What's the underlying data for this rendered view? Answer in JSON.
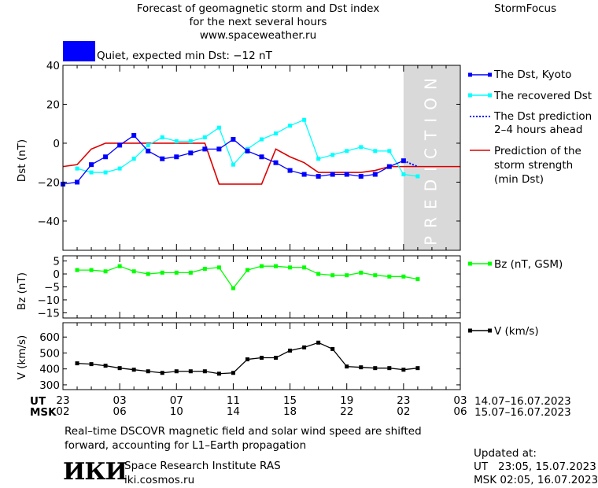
{
  "header": {
    "title_line1": "Forecast of geomagnetic storm and Dst index",
    "title_line2": "for the next several hours",
    "site": "www.spaceweather.ru",
    "brand": "StormFocus",
    "status_text": "Quiet, expected min Dst: −12 nT",
    "status_color": "#0000ff"
  },
  "legend": {
    "dst_kyoto": "The Dst, Kyoto",
    "dst_recovered": "The recovered Dst",
    "dst_prediction_1": "The Dst prediction",
    "dst_prediction_2": "2–4 hours ahead",
    "storm_strength_1": "Prediction of the",
    "storm_strength_2": "storm strength",
    "storm_strength_3": "(min Dst)",
    "bz": "Bz (nT, GSM)",
    "v": "V (km/s)"
  },
  "prediction_label": "PREDICTION",
  "axis": {
    "ut_label": "UT",
    "msk_label": "MSK",
    "ut_ticks": [
      "23",
      "03",
      "07",
      "11",
      "15",
      "19",
      "23",
      "03"
    ],
    "msk_ticks": [
      "02",
      "06",
      "10",
      "14",
      "18",
      "22",
      "02",
      "06"
    ],
    "ut_range": "14.07–16.07.2023",
    "msk_range": "15.07–16.07.2023"
  },
  "footer": {
    "note_line1": "Real–time DSCOVR magnetic field and solar wind speed are shifted",
    "note_line2": "forward, accounting for L1–Earth propagation",
    "institute_logo": "ИКИ",
    "institute_name": "Space Research Institute RAS",
    "institute_url": "iki.cosmos.ru",
    "updated_label": "Updated at:",
    "updated_ut": "UT   23:05, 15.07.2023",
    "updated_msk": "MSK 02:05, 16.07.2023"
  },
  "colors": {
    "dst_kyoto": "#0000ff",
    "dst_recovered": "#00ffff",
    "dst_prediction": "#0000ff",
    "storm_strength": "#dd0000",
    "bz": "#00ff00",
    "v": "#000000",
    "prediction_band": "#d9d9d9"
  },
  "chart_data": [
    {
      "type": "line",
      "ylabel": "Dst (nT)",
      "ylim": [
        -55,
        40
      ],
      "yticks": [
        40,
        20,
        0,
        -20,
        -40
      ],
      "xlim": [
        0,
        28
      ],
      "prediction_start": 24,
      "series": [
        {
          "name": "The Dst, Kyoto",
          "x": [
            0,
            1,
            2,
            3,
            4,
            5,
            6,
            7,
            8,
            9,
            10,
            11,
            12,
            13,
            14,
            15,
            16,
            17,
            18,
            19,
            20,
            21,
            22,
            23,
            24
          ],
          "y": [
            -21,
            -20,
            -11,
            -7,
            -1,
            4,
            -4,
            -8,
            -7,
            -5,
            -3,
            -3,
            2,
            -4,
            -7,
            -10,
            -14,
            -16,
            -17,
            -16,
            -16,
            -17,
            -16,
            -12,
            -9
          ]
        },
        {
          "name": "The recovered Dst",
          "x": [
            1,
            2,
            3,
            4,
            5,
            6,
            7,
            8,
            9,
            10,
            11,
            12,
            13,
            14,
            15,
            16,
            17,
            18,
            19,
            20,
            21,
            22,
            23,
            24,
            25
          ],
          "y": [
            -13,
            -15,
            -15,
            -13,
            -8,
            -1,
            3,
            1,
            1,
            3,
            8,
            -11,
            -3,
            2,
            5,
            9,
            12,
            -8,
            -6,
            -4,
            -2,
            -4,
            -4,
            -16,
            -17
          ]
        },
        {
          "name": "The Dst prediction 2–4 hours ahead",
          "x": [
            24,
            25
          ],
          "y": [
            -9,
            -12
          ]
        },
        {
          "name": "Prediction of the storm strength (min Dst)",
          "x": [
            0,
            1,
            2,
            3,
            4,
            5,
            6,
            7,
            8,
            9,
            10,
            11,
            12,
            13,
            14,
            15,
            16,
            17,
            18,
            19,
            20,
            21,
            22,
            23,
            24,
            25,
            26,
            27,
            28
          ],
          "y": [
            -12,
            -11,
            -3,
            0,
            0,
            0,
            0,
            0,
            0,
            0,
            0,
            -21,
            -21,
            -21,
            -21,
            -3,
            -7,
            -10,
            -15,
            -15,
            -15,
            -15,
            -14,
            -12,
            -12,
            -12,
            -12,
            -12,
            -12
          ]
        }
      ]
    },
    {
      "type": "line",
      "ylabel": "Bz (nT)",
      "ylim": [
        -17,
        7
      ],
      "yticks": [
        5,
        0,
        -5,
        -10,
        -15
      ],
      "xlim": [
        0,
        28
      ],
      "series": [
        {
          "name": "Bz (nT, GSM)",
          "x": [
            1,
            2,
            3,
            4,
            5,
            6,
            7,
            8,
            9,
            10,
            11,
            12,
            13,
            14,
            15,
            16,
            17,
            18,
            19,
            20,
            21,
            22,
            23,
            24,
            25
          ],
          "y": [
            1.5,
            1.5,
            1,
            3,
            1,
            0,
            0.5,
            0.5,
            0.5,
            2,
            2.5,
            -5.5,
            1.5,
            3,
            3,
            2.5,
            2.5,
            0,
            -0.5,
            -0.5,
            0.5,
            -0.5,
            -1,
            -1,
            -2
          ]
        }
      ]
    },
    {
      "type": "line",
      "ylabel": "V (km/s)",
      "ylim": [
        270,
        690
      ],
      "yticks": [
        300,
        400,
        500,
        600
      ],
      "xlim": [
        0,
        28
      ],
      "series": [
        {
          "name": "V (km/s)",
          "x": [
            1,
            2,
            3,
            4,
            5,
            6,
            7,
            8,
            9,
            10,
            11,
            12,
            13,
            14,
            15,
            16,
            17,
            18,
            19,
            20,
            21,
            22,
            23,
            24,
            25
          ],
          "y": [
            435,
            430,
            420,
            405,
            395,
            385,
            375,
            385,
            385,
            385,
            370,
            375,
            460,
            470,
            470,
            515,
            535,
            565,
            525,
            415,
            410,
            405,
            405,
            395,
            405
          ]
        }
      ]
    }
  ]
}
